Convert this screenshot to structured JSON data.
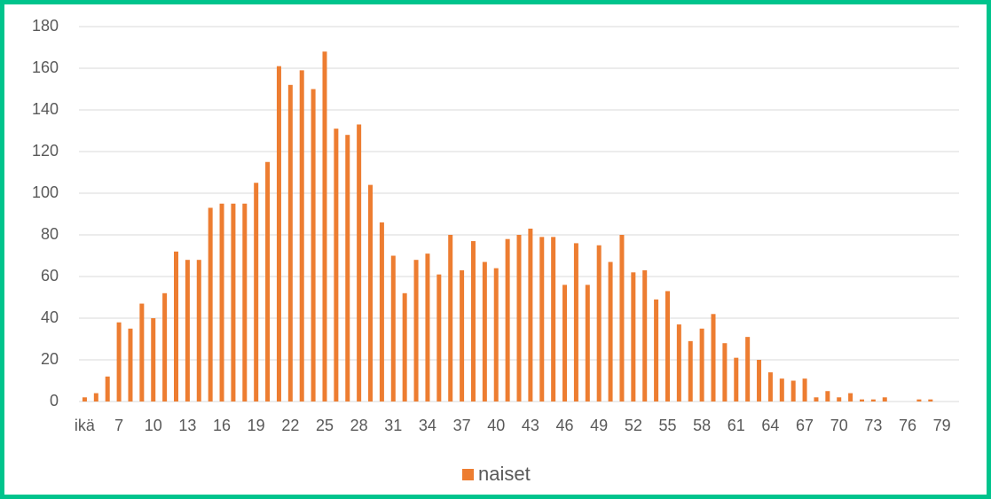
{
  "chart_data": {
    "type": "bar",
    "categories": [
      "ikä",
      null,
      null,
      "7",
      null,
      null,
      "10",
      null,
      null,
      "13",
      null,
      null,
      "16",
      null,
      null,
      "19",
      null,
      null,
      "22",
      null,
      null,
      "25",
      null,
      null,
      "28",
      null,
      null,
      "31",
      null,
      null,
      "34",
      null,
      null,
      "37",
      null,
      null,
      "40",
      null,
      null,
      "43",
      null,
      null,
      "46",
      null,
      null,
      "49",
      null,
      null,
      "52",
      null,
      null,
      "55",
      null,
      null,
      "58",
      null,
      null,
      "61",
      null,
      null,
      "64",
      null,
      null,
      "67",
      null,
      null,
      "70",
      null,
      null,
      "73",
      null,
      null,
      "76",
      null,
      null,
      "79",
      null
    ],
    "series": [
      {
        "name": "naiset",
        "color": "#ed7d31",
        "values": [
          2,
          4,
          12,
          38,
          35,
          47,
          40,
          52,
          72,
          68,
          68,
          93,
          95,
          95,
          95,
          105,
          115,
          161,
          152,
          159,
          150,
          168,
          131,
          128,
          133,
          104,
          86,
          70,
          52,
          68,
          71,
          61,
          80,
          63,
          77,
          67,
          64,
          78,
          80,
          83,
          79,
          79,
          56,
          76,
          56,
          75,
          67,
          80,
          62,
          63,
          49,
          53,
          37,
          29,
          35,
          42,
          28,
          21,
          31,
          20,
          14,
          11,
          10,
          11,
          2,
          5,
          2,
          4,
          1,
          1,
          2,
          0,
          0,
          1,
          1,
          0,
          0
        ]
      }
    ],
    "ylim": [
      0,
      180
    ],
    "yticks": [
      0,
      20,
      40,
      60,
      80,
      100,
      120,
      140,
      160,
      180
    ],
    "grid": true,
    "legend": "bottom"
  }
}
